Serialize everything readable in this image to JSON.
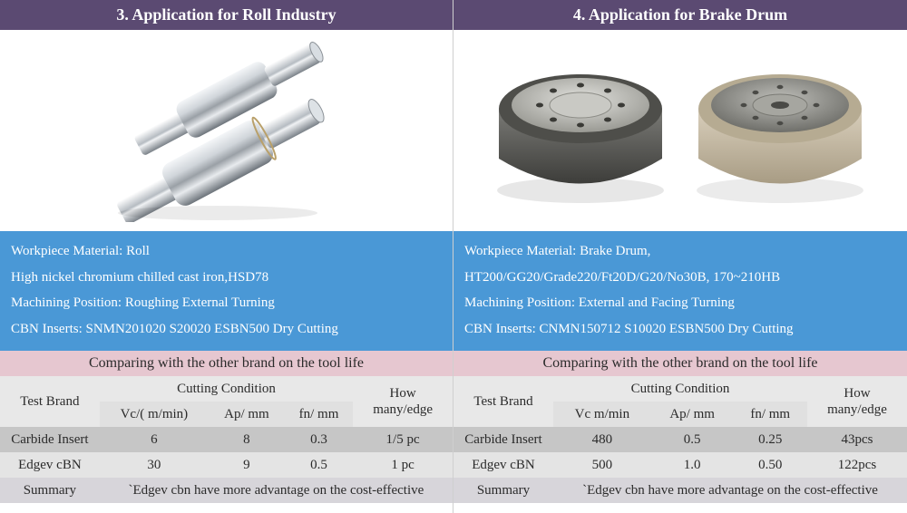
{
  "left": {
    "header": "3. Application for Roll Industry",
    "info_line1": "Workpiece Material: Roll",
    "info_line2_a": "High nickel chromium chilled cast iron,",
    "info_line2_b": "HSD78",
    "info_line3_a": "Machining Position: ",
    "info_line3_b": "Roughing External Turning",
    "info_line4": "CBN Inserts: SNMN201020 S20020 ESBN500 Dry Cutting",
    "compare": "Comparing with the other brand on the tool life",
    "col_testbrand": "Test Brand",
    "col_cutting": "Cutting Condition",
    "col_howmany": "How many/edge",
    "col_vc": "Vc/( m/min)",
    "col_ap": "Ap/ mm",
    "col_fn": "fn/ mm",
    "rows": [
      {
        "brand": "Carbide Insert",
        "vc": "6",
        "ap": "8",
        "fn": "0.3",
        "qty": "1/5 pc"
      },
      {
        "brand": "Edgev cBN",
        "vc": "30",
        "ap": "9",
        "fn": "0.5",
        "qty": "1 pc"
      }
    ],
    "summary_label": "Summary",
    "summary_text": "`Edgev cbn have more advantage on the cost-effective"
  },
  "right": {
    "header": "4. Application for Brake Drum",
    "info_line1": "Workpiece Material: Brake Drum,",
    "info_line2": "HT200/GG20/Grade220/Ft20D/G20/No30B, 170~210HB",
    "info_line3_a": "Machining Position: ",
    "info_line3_b": "External and Facing Turning",
    "info_line4": "CBN Inserts: CNMN150712 S10020 ESBN500 Dry Cutting",
    "compare": "Comparing with the other brand on the tool life",
    "col_testbrand": "Test Brand",
    "col_cutting": "Cutting Condition",
    "col_howmany": "How many/edge",
    "col_vc": "Vc m/min",
    "col_ap": "Ap/ mm",
    "col_fn": "fn/ mm",
    "rows": [
      {
        "brand": "Carbide Insert",
        "vc": "480",
        "ap": "0.5",
        "fn": "0.25",
        "qty": "43pcs"
      },
      {
        "brand": "Edgev cBN",
        "vc": "500",
        "ap": "1.0",
        "fn": "0.50",
        "qty": "122pcs"
      }
    ],
    "summary_label": "Summary",
    "summary_text": "`Edgev cbn have more advantage on the cost-effective"
  },
  "colors": {
    "header_band": "#5b4a72",
    "info_box": "#4a98d6",
    "compare_band": "#e6c7d0",
    "row_a": "#c6c6c6",
    "row_b": "#e4e4e4",
    "summary_row": "#d7d5da",
    "roll_metal_light": "#f4f6f8",
    "roll_metal_dark": "#6c737a",
    "drum1_body": "#5a5a58",
    "drum1_top": "#b8b8b4",
    "drum2_body": "#c7bba8",
    "drum2_top": "#8c8c88"
  }
}
